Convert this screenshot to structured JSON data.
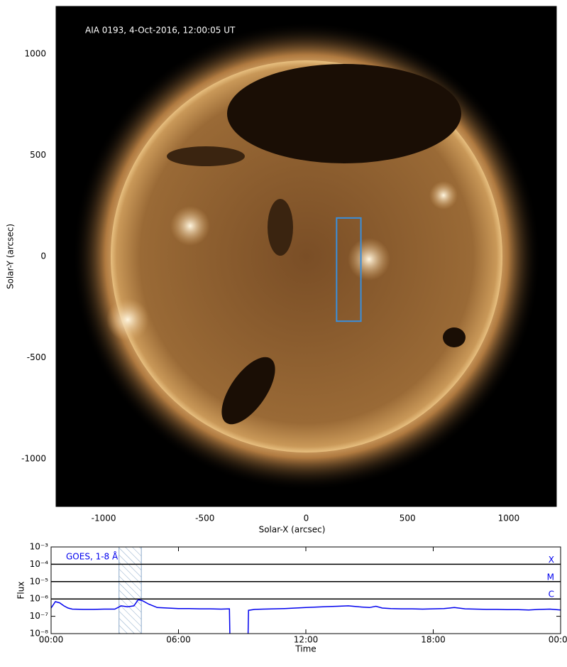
{
  "chart_data": [
    {
      "type": "image",
      "title": "AIA 0193, 4-Oct-2016, 12:00:05 UT",
      "xlabel": "Solar-X (arcsec)",
      "ylabel": "Solar-Y (arcsec)",
      "xlim": [
        -1235,
        1235
      ],
      "ylim": [
        -1235,
        1235
      ],
      "xticks": [
        -1000,
        -500,
        0,
        500,
        1000
      ],
      "yticks": [
        -1000,
        -500,
        0,
        500,
        1000
      ],
      "box": {
        "x": [
          150,
          270
        ],
        "y": [
          -320,
          190
        ],
        "color": "#3a8fdc"
      }
    },
    {
      "type": "line",
      "xlabel": "Time",
      "ylabel": "Flux",
      "yscale": "log",
      "xlim": [
        0,
        24
      ],
      "ylim": [
        1e-08,
        0.001
      ],
      "xticks": [
        {
          "value": 0,
          "label": "00:00"
        },
        {
          "value": 6,
          "label": "06:00"
        },
        {
          "value": 12,
          "label": "12:00"
        },
        {
          "value": 18,
          "label": "18:00"
        },
        {
          "value": 24,
          "label": "00:00"
        }
      ],
      "yticks": [
        {
          "value": 1e-08,
          "label": "10⁻⁸"
        },
        {
          "value": 1e-07,
          "label": "10⁻⁷"
        },
        {
          "value": 1e-06,
          "label": "10⁻⁶"
        },
        {
          "value": 1e-05,
          "label": "10⁻⁵"
        },
        {
          "value": 0.0001,
          "label": "10⁻⁴"
        },
        {
          "value": 0.001,
          "label": "10⁻³"
        }
      ],
      "levels": [
        {
          "value": 0.0001,
          "label": "X"
        },
        {
          "value": 1e-05,
          "label": "M"
        },
        {
          "value": 1e-06,
          "label": "C"
        }
      ],
      "shaded": [
        3.2,
        4.25
      ],
      "x": [
        0,
        0.2,
        0.4,
        0.6,
        0.8,
        1,
        1.5,
        2,
        2.5,
        3,
        3.3,
        3.6,
        3.9,
        4.1,
        4.3,
        4.6,
        5,
        5.5,
        6,
        6.5,
        7,
        7.5,
        8,
        8.4,
        8.42,
        8.6,
        9.28,
        9.3,
        9.6,
        10,
        10.5,
        11,
        11.5,
        12,
        12.5,
        13,
        13.5,
        14,
        14.5,
        15,
        15.3,
        15.6,
        16,
        16.5,
        17,
        17.5,
        18,
        18.5,
        19,
        19.5,
        20,
        20.5,
        21,
        21.5,
        22,
        22.5,
        23,
        23.5,
        24
      ],
      "series": [
        {
          "name": "GOES, 1-8 Å",
          "color": "#0000ee",
          "values": [
            3e-07,
            7e-07,
            6e-07,
            4e-07,
            3e-07,
            2.6e-07,
            2.5e-07,
            2.5e-07,
            2.6e-07,
            2.6e-07,
            4e-07,
            3.5e-07,
            4e-07,
            9e-07,
            8e-07,
            5e-07,
            3.2e-07,
            3e-07,
            2.8e-07,
            2.8e-07,
            2.7e-07,
            2.7e-07,
            2.6e-07,
            2.7e-07,
            1e-08,
            null,
            1e-08,
            2.2e-07,
            2.5e-07,
            2.6e-07,
            2.7e-07,
            2.8e-07,
            3e-07,
            3.2e-07,
            3.4e-07,
            3.6e-07,
            3.8e-07,
            4e-07,
            3.5e-07,
            3.2e-07,
            3.8e-07,
            3e-07,
            2.8e-07,
            2.7e-07,
            2.7e-07,
            2.6e-07,
            2.7e-07,
            2.8e-07,
            3.2e-07,
            2.7e-07,
            2.6e-07,
            2.5e-07,
            2.5e-07,
            2.4e-07,
            2.4e-07,
            2.3e-07,
            2.5e-07,
            2.6e-07,
            2.3e-07
          ]
        }
      ]
    }
  ]
}
